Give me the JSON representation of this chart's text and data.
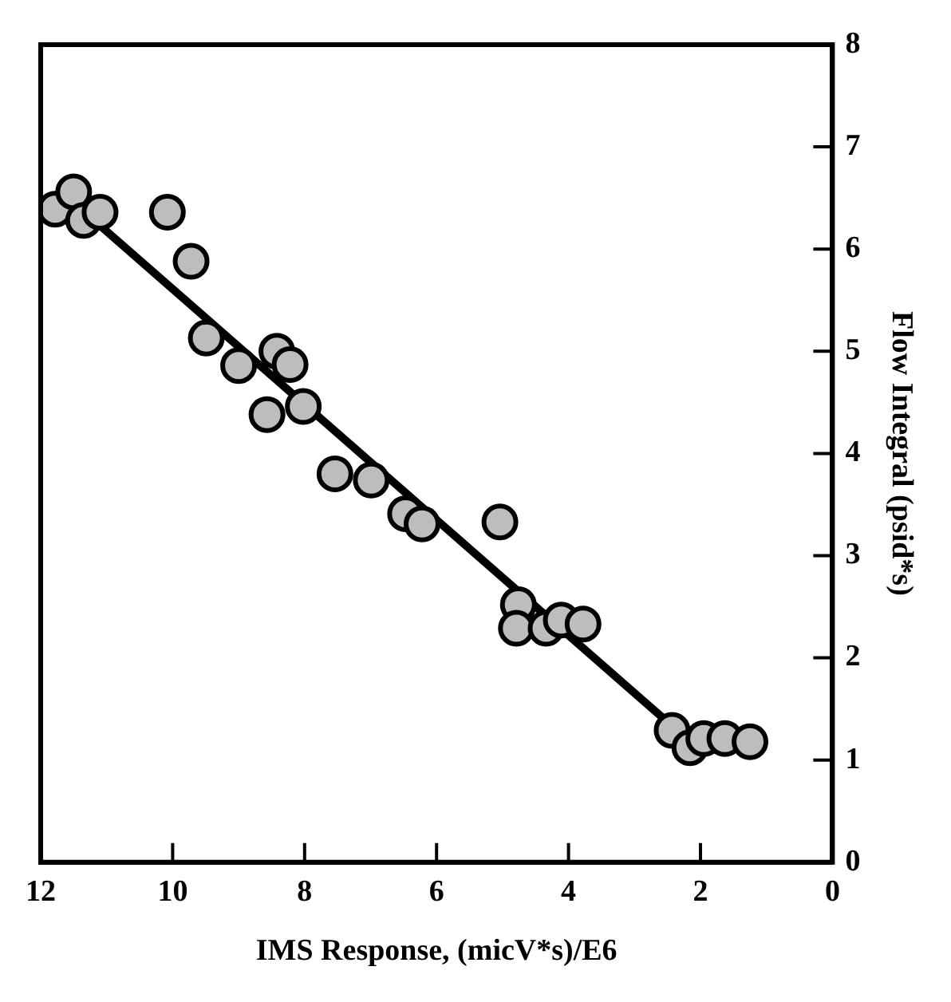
{
  "chart_data": {
    "type": "scatter",
    "xlabel": "IMS Response, (micV*s)/E6",
    "y2label": "Flow Integral (psid*s)",
    "xlim": [
      12,
      0
    ],
    "xticks": [
      12,
      10,
      8,
      6,
      4,
      2,
      0
    ],
    "y2lim": [
      0,
      8
    ],
    "y2ticks": [
      0,
      1,
      2,
      3,
      4,
      5,
      6,
      7,
      8
    ],
    "grid": false,
    "legend": false,
    "marker": "circle",
    "series": [
      {
        "type": "scatter",
        "axis": "y2",
        "color": "#bdbdbd",
        "x": [
          11.78,
          11.5,
          11.35,
          11.1,
          10.08,
          9.72,
          9.49,
          9.0,
          8.42,
          8.22,
          8.57,
          8.02,
          7.54,
          6.99,
          6.47,
          6.22,
          5.04,
          4.76,
          4.79,
          4.34,
          4.11,
          3.78,
          2.43,
          2.16,
          1.95,
          1.63,
          1.25
        ],
        "values": [
          6.39,
          6.56,
          6.28,
          6.36,
          6.36,
          5.88,
          5.13,
          4.86,
          5.0,
          4.87,
          4.38,
          4.46,
          3.8,
          3.74,
          3.41,
          3.31,
          3.33,
          2.52,
          2.29,
          2.29,
          2.37,
          2.33,
          1.29,
          1.12,
          1.21,
          1.21,
          1.18
        ]
      },
      {
        "type": "line",
        "axis": "y2",
        "color": "#000000",
        "line_style": "solid",
        "marker": "none",
        "x": [
          2.53,
          11.1
        ],
        "values": [
          1.39,
          6.23
        ]
      }
    ]
  }
}
